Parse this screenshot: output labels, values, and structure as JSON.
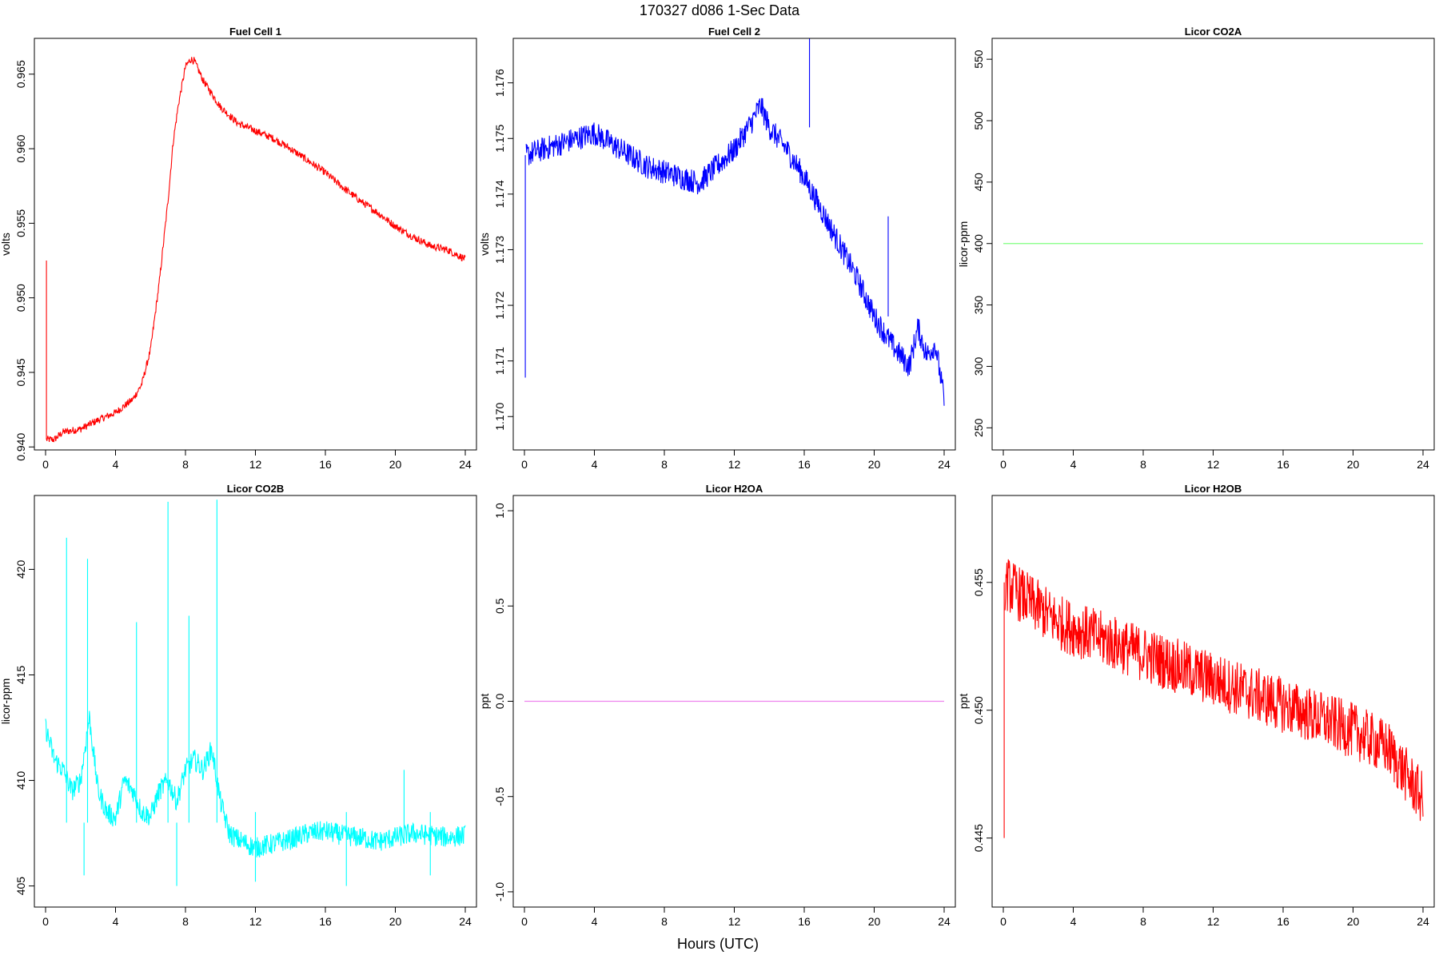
{
  "figure": {
    "title": "170327   d086   1-Sec Data",
    "xlabel": "Hours (UTC)"
  },
  "chart_data": [
    {
      "type": "line",
      "title": "Fuel Cell 1",
      "ylabel": "volts",
      "color": "#ff0000",
      "xlim": [
        0,
        24
      ],
      "ylim": [
        0.9398,
        0.9674
      ],
      "xticks": [
        0,
        4,
        8,
        12,
        16,
        20,
        24
      ],
      "yticks": [
        0.94,
        0.945,
        0.95,
        0.955,
        0.96,
        0.965
      ],
      "ytick_labels": [
        "0.940",
        "0.945",
        "0.950",
        "0.955",
        "0.960",
        "0.965"
      ],
      "noise": 0.00025,
      "spikes": [
        {
          "x": 0.05,
          "y0": 0.9405,
          "y1": 0.9525
        }
      ],
      "x": [
        0.05,
        0.5,
        1,
        2,
        3,
        4,
        5,
        5.5,
        6,
        6.5,
        7,
        7.3,
        7.6,
        8,
        8.3,
        8.5,
        9,
        10,
        11,
        12,
        13,
        14,
        15,
        16,
        17,
        18,
        19,
        20,
        21,
        22,
        23,
        24
      ],
      "y": [
        0.9405,
        0.9405,
        0.941,
        0.9412,
        0.9418,
        0.9423,
        0.9432,
        0.9442,
        0.9465,
        0.951,
        0.9565,
        0.9605,
        0.963,
        0.9655,
        0.966,
        0.9659,
        0.9646,
        0.9628,
        0.9617,
        0.9612,
        0.9607,
        0.96,
        0.9592,
        0.9584,
        0.9574,
        0.9565,
        0.9557,
        0.9548,
        0.9541,
        0.9535,
        0.9532,
        0.9526
      ]
    },
    {
      "type": "line",
      "title": "Fuel Cell 2",
      "ylabel": "volts",
      "color": "#0000ff",
      "xlim": [
        0,
        24
      ],
      "ylim": [
        1.1694,
        1.1768
      ],
      "xticks": [
        0,
        4,
        8,
        12,
        16,
        20,
        24
      ],
      "yticks": [
        1.17,
        1.171,
        1.172,
        1.173,
        1.174,
        1.175,
        1.176
      ],
      "ytick_labels": [
        "1.170",
        "1.171",
        "1.172",
        "1.173",
        "1.174",
        "1.175",
        "1.176"
      ],
      "noise": 0.00022,
      "spikes": [
        {
          "x": 0.05,
          "y0": 1.1707,
          "y1": 1.1747
        },
        {
          "x": 16.3,
          "y0": 1.1752,
          "y1": 1.1768
        },
        {
          "x": 20.8,
          "y0": 1.1718,
          "y1": 1.1736
        }
      ],
      "x": [
        0.1,
        1,
        2,
        3,
        4,
        5,
        6,
        7,
        8,
        9,
        10,
        11,
        12,
        13,
        13.5,
        14,
        15,
        16,
        17,
        18,
        19,
        20,
        21,
        22,
        22.5,
        23,
        23.5,
        24
      ],
      "y": [
        1.1747,
        1.1748,
        1.1749,
        1.175,
        1.1751,
        1.1749,
        1.1747,
        1.1745,
        1.1744,
        1.1743,
        1.1742,
        1.1745,
        1.1748,
        1.1753,
        1.1756,
        1.1752,
        1.1748,
        1.1743,
        1.1737,
        1.1731,
        1.1725,
        1.1718,
        1.1713,
        1.1709,
        1.1716,
        1.1711,
        1.1713,
        1.1703
      ]
    },
    {
      "type": "line",
      "title": "Licor CO2A",
      "ylabel": "licor-ppm",
      "color": "#7fff7f",
      "xlim": [
        0,
        24
      ],
      "ylim": [
        232,
        567
      ],
      "xticks": [
        0,
        4,
        8,
        12,
        16,
        20,
        24
      ],
      "yticks": [
        250,
        300,
        350,
        400,
        450,
        500,
        550
      ],
      "ytick_labels": [
        "250",
        "300",
        "350",
        "400",
        "450",
        "500",
        "550"
      ],
      "noise": 0,
      "spikes": [],
      "x": [
        0,
        24
      ],
      "y": [
        400,
        400
      ]
    },
    {
      "type": "line",
      "title": "Licor CO2B",
      "ylabel": "licor-ppm",
      "color": "#00ffff",
      "xlim": [
        0,
        24
      ],
      "ylim": [
        404,
        423.5
      ],
      "xticks": [
        0,
        4,
        8,
        12,
        16,
        20,
        24
      ],
      "yticks": [
        405,
        410,
        415,
        420
      ],
      "ytick_labels": [
        "405",
        "410",
        "415",
        "420"
      ],
      "noise": 0.5,
      "spikes": [
        {
          "x": 1.2,
          "y0": 408,
          "y1": 421.5
        },
        {
          "x": 2.4,
          "y0": 408,
          "y1": 420.5
        },
        {
          "x": 5.2,
          "y0": 408,
          "y1": 417.5
        },
        {
          "x": 7.0,
          "y0": 408,
          "y1": 423.2
        },
        {
          "x": 8.2,
          "y0": 408,
          "y1": 417.8
        },
        {
          "x": 9.8,
          "y0": 408,
          "y1": 423.3
        },
        {
          "x": 2.2,
          "y0": 405.5,
          "y1": 408
        },
        {
          "x": 7.5,
          "y0": 405,
          "y1": 408
        },
        {
          "x": 12.0,
          "y0": 405.2,
          "y1": 408.5
        },
        {
          "x": 17.2,
          "y0": 405,
          "y1": 408.5
        },
        {
          "x": 20.5,
          "y0": 407,
          "y1": 410.5
        },
        {
          "x": 22.0,
          "y0": 405.5,
          "y1": 408.5
        }
      ],
      "x": [
        0,
        0.5,
        1,
        1.5,
        2,
        2.5,
        3,
        3.5,
        4,
        4.5,
        5,
        5.5,
        6,
        6.5,
        7,
        7.5,
        8,
        8.5,
        9,
        9.5,
        10,
        10.5,
        11,
        11.5,
        12,
        13,
        14,
        15,
        16,
        17,
        18,
        19,
        20,
        21,
        22,
        23,
        24
      ],
      "y": [
        412.5,
        411,
        410.5,
        409.5,
        410,
        413,
        409.5,
        408.5,
        408.2,
        410,
        409.5,
        408.5,
        408.3,
        409.5,
        410,
        409,
        410.5,
        411,
        410.5,
        411.5,
        409,
        407.5,
        407.2,
        407,
        406.8,
        407,
        407.2,
        407.5,
        407.6,
        407.4,
        407.3,
        407.1,
        407.3,
        407.5,
        407.4,
        407.3,
        407.4
      ]
    },
    {
      "type": "line",
      "title": "Licor H2OA",
      "ylabel": "ppt",
      "color": "#ee82ee",
      "xlim": [
        0,
        24
      ],
      "ylim": [
        -1.08,
        1.08
      ],
      "xticks": [
        0,
        4,
        8,
        12,
        16,
        20,
        24
      ],
      "yticks": [
        -1.0,
        -0.5,
        0.0,
        0.5,
        1.0
      ],
      "ytick_labels": [
        "-1.0",
        "-0.5",
        "0.0",
        "0.5",
        "1.0"
      ],
      "noise": 0,
      "spikes": [],
      "x": [
        0,
        24
      ],
      "y": [
        0,
        0
      ]
    },
    {
      "type": "line",
      "title": "Licor H2OB",
      "ylabel": "ppt",
      "color": "#ff0000",
      "xlim": [
        0,
        24
      ],
      "ylim": [
        0.4423,
        0.4584
      ],
      "xticks": [
        0,
        4,
        8,
        12,
        16,
        20,
        24
      ],
      "yticks": [
        0.445,
        0.45,
        0.455
      ],
      "ytick_labels": [
        "0.445",
        "0.450",
        "0.455"
      ],
      "noise": 0.0011,
      "spikes": [
        {
          "x": 0.05,
          "y0": 0.445,
          "y1": 0.455
        }
      ],
      "x": [
        0.1,
        1,
        2,
        3,
        4,
        6,
        8,
        10,
        12,
        14,
        16,
        18,
        20,
        22,
        23,
        24
      ],
      "y": [
        0.455,
        0.4545,
        0.454,
        0.4535,
        0.4532,
        0.4527,
        0.4522,
        0.4517,
        0.4512,
        0.4507,
        0.4502,
        0.4497,
        0.4492,
        0.4485,
        0.4475,
        0.4465
      ]
    }
  ]
}
